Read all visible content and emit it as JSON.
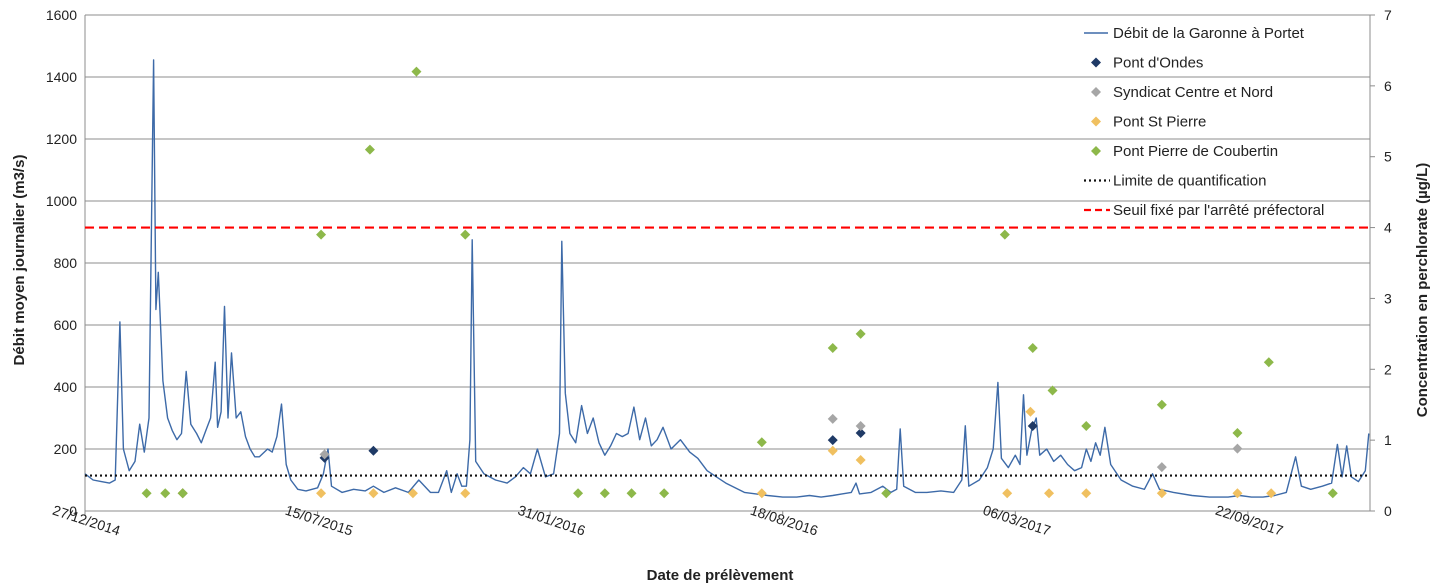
{
  "chart_data": {
    "type": "line",
    "title": "",
    "xlabel": "Date de prélèvement",
    "ylabel_left": "Débit moyen journalier (m3/s)",
    "ylabel_right": "Concentration en perchlorate (µg/L)",
    "xlim": [
      "2014-12-27",
      "2018-01-05"
    ],
    "ylim_left": [
      0,
      1600
    ],
    "ylim_right": [
      0,
      7
    ],
    "x_ticks": [
      "27/12/2014",
      "15/07/2015",
      "31/01/2016",
      "18/08/2016",
      "06/03/2017",
      "22/09/2017"
    ],
    "y_ticks_left": [
      0,
      200,
      400,
      600,
      800,
      1000,
      1200,
      1400,
      1600
    ],
    "y_ticks_right": [
      0,
      1,
      2,
      3,
      4,
      5,
      6,
      7
    ],
    "grid": "horizontal",
    "legend_position": "top-right",
    "series": [
      {
        "name": "Débit de la Garonne à Portet",
        "kind": "line",
        "axis": "left",
        "color": "#3d6aa8",
        "points": [
          [
            "2014-12-27",
            120
          ],
          [
            "2015-01-03",
            100
          ],
          [
            "2015-01-10",
            95
          ],
          [
            "2015-01-17",
            90
          ],
          [
            "2015-01-22",
            100
          ],
          [
            "2015-01-26",
            610
          ],
          [
            "2015-01-29",
            200
          ],
          [
            "2015-02-03",
            130
          ],
          [
            "2015-02-08",
            160
          ],
          [
            "2015-02-12",
            280
          ],
          [
            "2015-02-16",
            190
          ],
          [
            "2015-02-20",
            300
          ],
          [
            "2015-02-24",
            1455
          ],
          [
            "2015-02-26",
            650
          ],
          [
            "2015-02-28",
            770
          ],
          [
            "2015-03-04",
            420
          ],
          [
            "2015-03-08",
            300
          ],
          [
            "2015-03-12",
            260
          ],
          [
            "2015-03-16",
            230
          ],
          [
            "2015-03-20",
            250
          ],
          [
            "2015-03-24",
            450
          ],
          [
            "2015-03-28",
            280
          ],
          [
            "2015-04-02",
            250
          ],
          [
            "2015-04-06",
            220
          ],
          [
            "2015-04-10",
            260
          ],
          [
            "2015-04-14",
            300
          ],
          [
            "2015-04-18",
            480
          ],
          [
            "2015-04-20",
            270
          ],
          [
            "2015-04-23",
            320
          ],
          [
            "2015-04-26",
            660
          ],
          [
            "2015-04-29",
            300
          ],
          [
            "2015-05-02",
            510
          ],
          [
            "2015-05-06",
            300
          ],
          [
            "2015-05-10",
            320
          ],
          [
            "2015-05-14",
            240
          ],
          [
            "2015-05-18",
            200
          ],
          [
            "2015-05-22",
            175
          ],
          [
            "2015-05-26",
            175
          ],
          [
            "2015-06-02",
            200
          ],
          [
            "2015-06-06",
            190
          ],
          [
            "2015-06-10",
            240
          ],
          [
            "2015-06-14",
            345
          ],
          [
            "2015-06-18",
            150
          ],
          [
            "2015-06-22",
            100
          ],
          [
            "2015-06-28",
            70
          ],
          [
            "2015-07-05",
            65
          ],
          [
            "2015-07-15",
            75
          ],
          [
            "2015-07-20",
            120
          ],
          [
            "2015-07-24",
            200
          ],
          [
            "2015-07-27",
            80
          ],
          [
            "2015-08-05",
            60
          ],
          [
            "2015-08-15",
            70
          ],
          [
            "2015-08-25",
            65
          ],
          [
            "2015-09-01",
            80
          ],
          [
            "2015-09-10",
            60
          ],
          [
            "2015-09-20",
            75
          ],
          [
            "2015-10-01",
            60
          ],
          [
            "2015-10-10",
            100
          ],
          [
            "2015-10-20",
            60
          ],
          [
            "2015-10-27",
            60
          ],
          [
            "2015-11-03",
            130
          ],
          [
            "2015-11-07",
            60
          ],
          [
            "2015-11-12",
            120
          ],
          [
            "2015-11-16",
            80
          ],
          [
            "2015-11-20",
            80
          ],
          [
            "2015-11-23",
            230
          ],
          [
            "2015-11-25",
            875
          ],
          [
            "2015-11-28",
            160
          ],
          [
            "2015-12-05",
            120
          ],
          [
            "2015-12-15",
            100
          ],
          [
            "2015-12-25",
            90
          ],
          [
            "2016-01-01",
            110
          ],
          [
            "2016-01-08",
            140
          ],
          [
            "2016-01-14",
            120
          ],
          [
            "2016-01-20",
            200
          ],
          [
            "2016-01-27",
            110
          ],
          [
            "2016-02-03",
            120
          ],
          [
            "2016-02-08",
            250
          ],
          [
            "2016-02-10",
            870
          ],
          [
            "2016-02-13",
            380
          ],
          [
            "2016-02-17",
            250
          ],
          [
            "2016-02-22",
            220
          ],
          [
            "2016-02-27",
            340
          ],
          [
            "2016-03-03",
            250
          ],
          [
            "2016-03-08",
            300
          ],
          [
            "2016-03-13",
            220
          ],
          [
            "2016-03-18",
            180
          ],
          [
            "2016-03-23",
            210
          ],
          [
            "2016-03-28",
            250
          ],
          [
            "2016-04-02",
            240
          ],
          [
            "2016-04-07",
            250
          ],
          [
            "2016-04-12",
            335
          ],
          [
            "2016-04-17",
            230
          ],
          [
            "2016-04-22",
            300
          ],
          [
            "2016-04-27",
            210
          ],
          [
            "2016-05-02",
            230
          ],
          [
            "2016-05-07",
            270
          ],
          [
            "2016-05-14",
            200
          ],
          [
            "2016-05-22",
            230
          ],
          [
            "2016-05-30",
            190
          ],
          [
            "2016-06-06",
            170
          ],
          [
            "2016-06-14",
            130
          ],
          [
            "2016-06-22",
            110
          ],
          [
            "2016-06-30",
            90
          ],
          [
            "2016-07-08",
            75
          ],
          [
            "2016-07-16",
            60
          ],
          [
            "2016-07-26",
            55
          ],
          [
            "2016-08-05",
            50
          ],
          [
            "2016-08-18",
            45
          ],
          [
            "2016-08-30",
            45
          ],
          [
            "2016-09-10",
            50
          ],
          [
            "2016-09-20",
            45
          ],
          [
            "2016-09-30",
            50
          ],
          [
            "2016-10-08",
            55
          ],
          [
            "2016-10-16",
            60
          ],
          [
            "2016-10-20",
            90
          ],
          [
            "2016-10-23",
            55
          ],
          [
            "2016-11-02",
            60
          ],
          [
            "2016-11-12",
            80
          ],
          [
            "2016-11-19",
            60
          ],
          [
            "2016-11-24",
            70
          ],
          [
            "2016-11-27",
            265
          ],
          [
            "2016-11-30",
            80
          ],
          [
            "2016-12-10",
            60
          ],
          [
            "2016-12-20",
            60
          ],
          [
            "2017-01-01",
            65
          ],
          [
            "2017-01-12",
            60
          ],
          [
            "2017-01-19",
            100
          ],
          [
            "2017-01-22",
            275
          ],
          [
            "2017-01-25",
            80
          ],
          [
            "2017-02-03",
            100
          ],
          [
            "2017-02-10",
            140
          ],
          [
            "2017-02-15",
            200
          ],
          [
            "2017-02-19",
            415
          ],
          [
            "2017-02-22",
            170
          ],
          [
            "2017-02-28",
            140
          ],
          [
            "2017-03-06",
            180
          ],
          [
            "2017-03-10",
            150
          ],
          [
            "2017-03-13",
            375
          ],
          [
            "2017-03-16",
            180
          ],
          [
            "2017-03-20",
            260
          ],
          [
            "2017-03-24",
            300
          ],
          [
            "2017-03-27",
            180
          ],
          [
            "2017-04-02",
            200
          ],
          [
            "2017-04-08",
            160
          ],
          [
            "2017-04-14",
            180
          ],
          [
            "2017-04-20",
            150
          ],
          [
            "2017-04-26",
            130
          ],
          [
            "2017-05-02",
            140
          ],
          [
            "2017-05-06",
            200
          ],
          [
            "2017-05-10",
            160
          ],
          [
            "2017-05-14",
            220
          ],
          [
            "2017-05-18",
            180
          ],
          [
            "2017-05-22",
            270
          ],
          [
            "2017-05-27",
            150
          ],
          [
            "2017-06-05",
            100
          ],
          [
            "2017-06-15",
            80
          ],
          [
            "2017-06-25",
            70
          ],
          [
            "2017-07-02",
            120
          ],
          [
            "2017-07-08",
            70
          ],
          [
            "2017-07-20",
            60
          ],
          [
            "2017-08-05",
            50
          ],
          [
            "2017-08-20",
            45
          ],
          [
            "2017-09-05",
            45
          ],
          [
            "2017-09-15",
            50
          ],
          [
            "2017-09-25",
            45
          ],
          [
            "2017-10-05",
            45
          ],
          [
            "2017-10-15",
            50
          ],
          [
            "2017-10-25",
            60
          ],
          [
            "2017-11-02",
            175
          ],
          [
            "2017-11-07",
            80
          ],
          [
            "2017-11-15",
            70
          ],
          [
            "2017-11-25",
            80
          ],
          [
            "2017-12-03",
            90
          ],
          [
            "2017-12-08",
            215
          ],
          [
            "2017-12-12",
            110
          ],
          [
            "2017-12-16",
            210
          ],
          [
            "2017-12-20",
            110
          ],
          [
            "2017-12-26",
            95
          ],
          [
            "2018-01-01",
            130
          ],
          [
            "2018-01-04",
            250
          ]
        ]
      },
      {
        "name": "Pont d'Ondes",
        "kind": "marker",
        "axis": "right",
        "color": "#1f3a66",
        "points": [
          [
            "2015-03-21",
            0.25
          ],
          [
            "2015-07-21",
            0.75
          ],
          [
            "2015-09-01",
            0.85
          ],
          [
            "2016-09-30",
            1.0
          ],
          [
            "2016-10-24",
            1.1
          ],
          [
            "2017-03-21",
            1.2
          ]
        ]
      },
      {
        "name": "Syndicat Centre et Nord",
        "kind": "marker",
        "axis": "right",
        "color": "#a6a6a6",
        "points": [
          [
            "2015-07-21",
            0.8
          ],
          [
            "2016-09-30",
            1.3
          ],
          [
            "2016-10-24",
            1.2
          ],
          [
            "2017-07-10",
            0.62
          ],
          [
            "2017-09-13",
            0.88
          ]
        ]
      },
      {
        "name": "Pont St Pierre",
        "kind": "marker",
        "axis": "right",
        "color": "#f0c060",
        "points": [
          [
            "2015-03-21",
            0.25
          ],
          [
            "2015-07-18",
            0.25
          ],
          [
            "2015-09-01",
            0.25
          ],
          [
            "2015-10-05",
            0.25
          ],
          [
            "2015-11-19",
            0.25
          ],
          [
            "2016-07-31",
            0.25
          ],
          [
            "2016-09-30",
            0.85
          ],
          [
            "2016-10-24",
            0.72
          ],
          [
            "2017-02-27",
            0.25
          ],
          [
            "2017-03-19",
            1.4
          ],
          [
            "2017-04-04",
            0.25
          ],
          [
            "2017-05-06",
            0.25
          ],
          [
            "2017-07-10",
            0.25
          ],
          [
            "2017-09-13",
            0.25
          ],
          [
            "2017-10-12",
            0.25
          ]
        ]
      },
      {
        "name": "Pont Pierre de Coubertin",
        "kind": "marker",
        "axis": "right",
        "color": "#8db84a",
        "points": [
          [
            "2015-02-18",
            0.25
          ],
          [
            "2015-03-06",
            0.25
          ],
          [
            "2015-03-21",
            0.25
          ],
          [
            "2015-07-18",
            3.9
          ],
          [
            "2015-08-29",
            5.1
          ],
          [
            "2015-10-08",
            6.2
          ],
          [
            "2015-11-19",
            3.9
          ],
          [
            "2016-02-24",
            0.25
          ],
          [
            "2016-03-18",
            0.25
          ],
          [
            "2016-04-10",
            0.25
          ],
          [
            "2016-05-08",
            0.25
          ],
          [
            "2016-07-31",
            0.97
          ],
          [
            "2016-09-30",
            2.3
          ],
          [
            "2016-10-24",
            2.5
          ],
          [
            "2016-11-15",
            0.25
          ],
          [
            "2017-02-25",
            3.9
          ],
          [
            "2017-03-21",
            2.3
          ],
          [
            "2017-04-07",
            1.7
          ],
          [
            "2017-05-06",
            1.2
          ],
          [
            "2017-07-10",
            1.5
          ],
          [
            "2017-09-13",
            1.1
          ],
          [
            "2017-10-10",
            2.1
          ],
          [
            "2017-12-04",
            0.25
          ]
        ]
      },
      {
        "name": "Limite de quantification",
        "kind": "hline",
        "axis": "right",
        "color": "#111111",
        "value": 0.5
      },
      {
        "name": "Seuil fixé par l'arrêté préfectoral",
        "kind": "hline",
        "axis": "right",
        "color": "#ff0000",
        "value": 4
      }
    ]
  }
}
